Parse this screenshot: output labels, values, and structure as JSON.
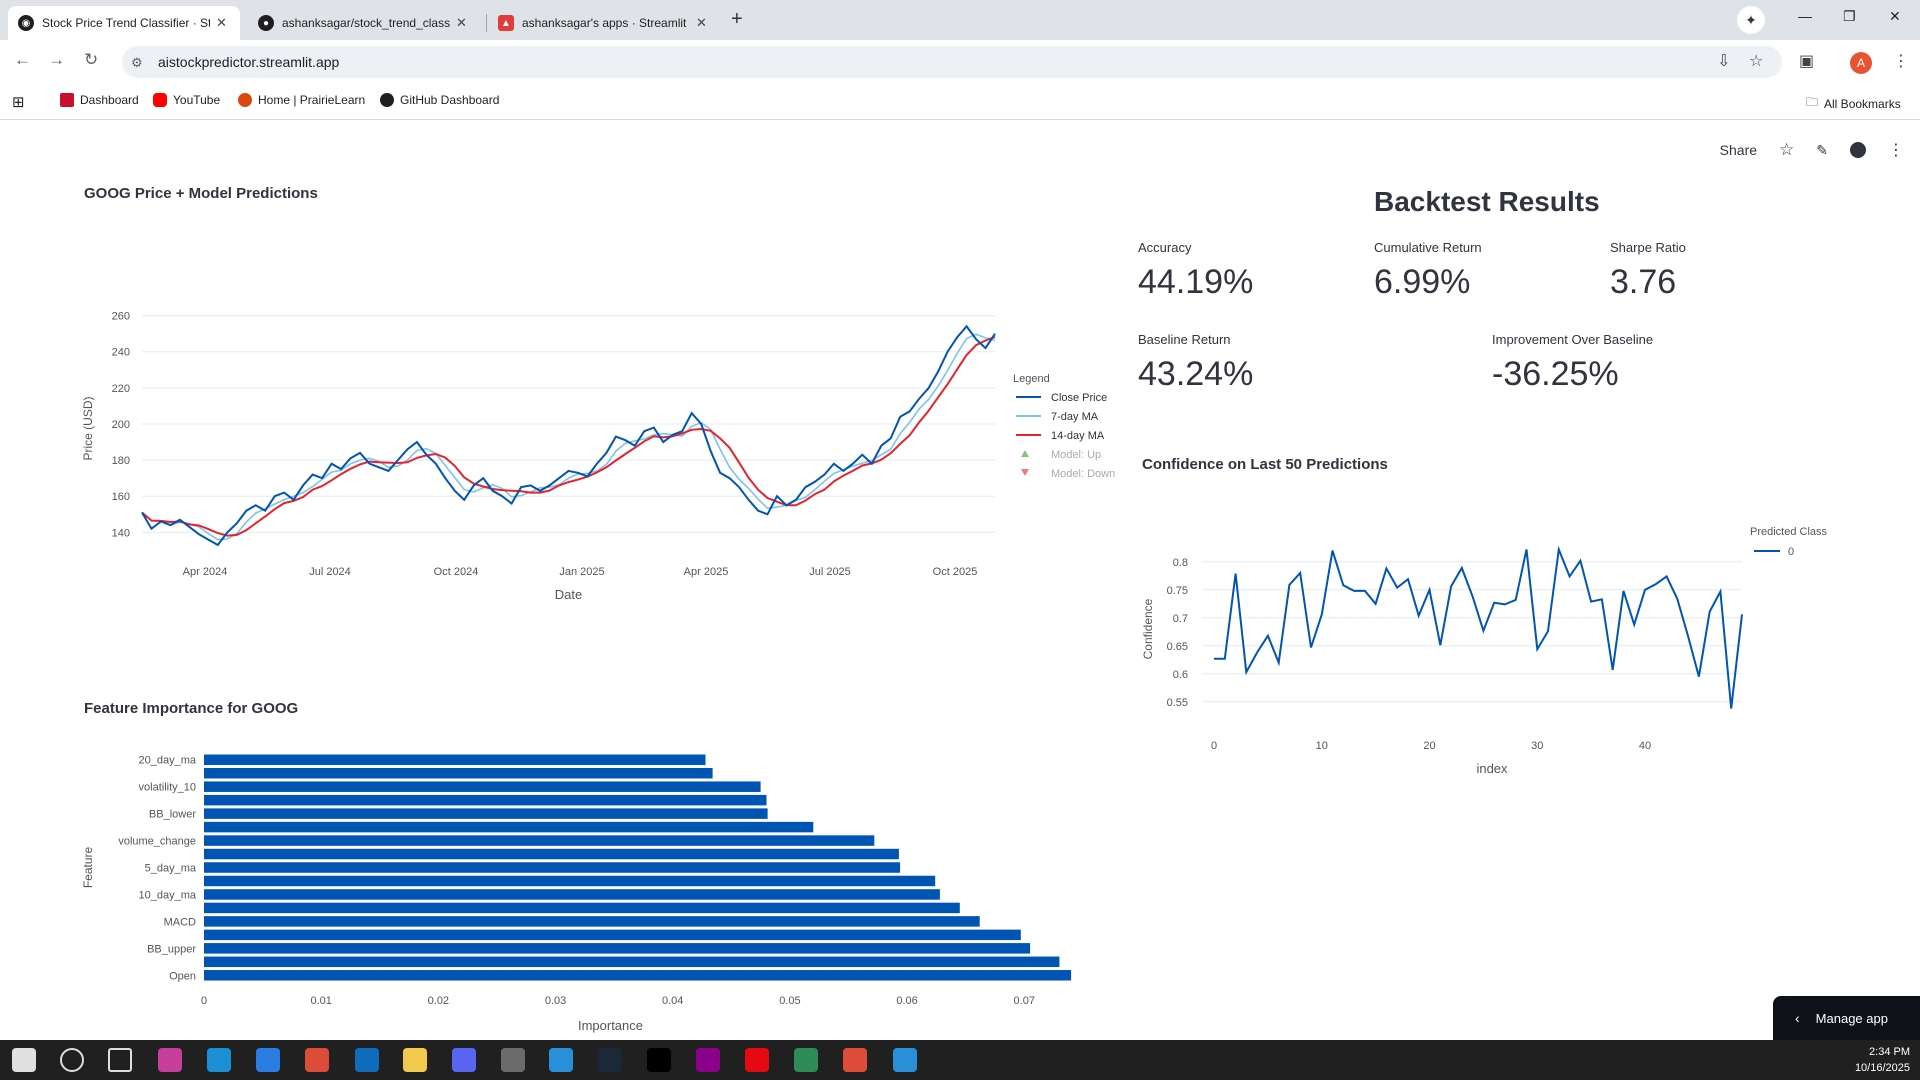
{
  "browser": {
    "tabs": [
      {
        "title": "Stock Price Trend Classifier · Str",
        "fav_color": "#1f1f1f"
      },
      {
        "title": "ashanksagar/stock_trend_classif",
        "fav_color": "#1f1f1f"
      },
      {
        "title": "ashanksagar's apps · Streamlit",
        "fav_color": "#e33b3b"
      }
    ],
    "url": "aistockpredictor.streamlit.app",
    "bookmarks": [
      {
        "label": "Dashboard",
        "color": "#c8102e"
      },
      {
        "label": "YouTube",
        "color": "#ff0000"
      },
      {
        "label": "Home | PrairieLearn",
        "color": "#d9480f"
      },
      {
        "label": "GitHub Dashboard",
        "color": "#1f1f1f"
      }
    ],
    "all_bookmarks": "All Bookmarks",
    "profile_initial": "A"
  },
  "header": {
    "share": "Share"
  },
  "price_chart": {
    "title": "GOOG Price + Model Predictions",
    "chart_data": {
      "type": "line",
      "xlabel": "Date",
      "ylabel": "Price (USD)",
      "x_ticks": [
        "Apr 2024",
        "Jul 2024",
        "Oct 2024",
        "Jan 2025",
        "Apr 2025",
        "Jul 2025",
        "Oct 2025"
      ],
      "y_ticks": [
        140,
        160,
        180,
        200,
        220,
        240,
        260
      ],
      "ylim": [
        133,
        262
      ],
      "legend_title": "Legend",
      "legend": [
        "Close Price",
        "7-day MA",
        "14-day MA",
        "Model: Up",
        "Model: Down"
      ],
      "colors": {
        "close": "#0055b3",
        "ma7": "#7ec3f0",
        "ma14": "#e8222b",
        "up": "#2ca02c",
        "down": "#d62728"
      },
      "series": [
        {
          "name": "Close Price",
          "x_range": [
            "2024-01-20",
            "2025-10-16"
          ],
          "values": [
            151,
            142,
            146,
            144,
            147,
            143,
            139,
            136,
            133,
            140,
            145,
            152,
            155,
            152,
            160,
            162,
            158,
            166,
            172,
            170,
            178,
            175,
            181,
            184,
            178,
            176,
            174,
            180,
            186,
            190,
            183,
            178,
            170,
            163,
            158,
            166,
            170,
            163,
            160,
            156,
            165,
            166,
            163,
            166,
            170,
            174,
            173,
            171,
            178,
            184,
            193,
            191,
            188,
            196,
            198,
            190,
            194,
            196,
            206,
            200,
            185,
            173,
            170,
            165,
            158,
            152,
            150,
            160,
            155,
            158,
            165,
            168,
            172,
            178,
            174,
            178,
            183,
            178,
            188,
            192,
            204,
            207,
            214,
            220,
            229,
            240,
            248,
            254,
            247,
            242,
            250
          ]
        }
      ],
      "predictions": "Model: Up / Model: Down markers listed in legend"
    }
  },
  "backtest": {
    "title": "Backtest Results",
    "metrics": [
      {
        "label": "Accuracy",
        "value": "44.19%"
      },
      {
        "label": "Cumulative Return",
        "value": "6.99%"
      },
      {
        "label": "Sharpe Ratio",
        "value": "3.76"
      },
      {
        "label": "Baseline Return",
        "value": "43.24%"
      },
      {
        "label": "Improvement Over Baseline",
        "value": "-36.25%"
      }
    ]
  },
  "confidence_chart": {
    "title": "Confidence on Last 50 Predictions",
    "chart_data": {
      "type": "line",
      "xlabel": "index",
      "ylabel": "Confidence",
      "x_ticks": [
        0,
        10,
        20,
        30,
        40
      ],
      "y_ticks": [
        0.55,
        0.6,
        0.65,
        0.7,
        0.75,
        0.8
      ],
      "ylim": [
        0.53,
        0.83
      ],
      "legend_title": "Predicted Class",
      "legend": [
        "0"
      ],
      "color": "#0055b3",
      "series": [
        {
          "name": "0",
          "values": [
            0.627,
            0.627,
            0.779,
            0.603,
            0.638,
            0.668,
            0.62,
            0.759,
            0.78,
            0.647,
            0.706,
            0.82,
            0.758,
            0.748,
            0.748,
            0.725,
            0.788,
            0.754,
            0.769,
            0.704,
            0.75,
            0.651,
            0.756,
            0.789,
            0.738,
            0.677,
            0.727,
            0.724,
            0.732,
            0.822,
            0.644,
            0.676,
            0.822,
            0.774,
            0.802,
            0.729,
            0.733,
            0.607,
            0.748,
            0.688,
            0.75,
            0.76,
            0.774,
            0.734,
            0.667,
            0.595,
            0.711,
            0.747,
            0.538,
            0.706
          ]
        }
      ]
    }
  },
  "feature_chart": {
    "title": "Feature Importance for GOOG",
    "chart_data": {
      "type": "bar",
      "orientation": "horizontal",
      "xlabel": "Importance",
      "ylabel": "Feature",
      "x_ticks": [
        0,
        0.01,
        0.02,
        0.03,
        0.04,
        0.05,
        0.06,
        0.07
      ],
      "xlim": [
        0,
        0.0745
      ],
      "color": "#0055b3",
      "labeled_rows": {
        "0": "20_day_ma",
        "2": "volatility_10",
        "4": "BB_lower",
        "6": "volume_change",
        "8": "5_day_ma",
        "10": "10_day_ma",
        "12": "MACD",
        "14": "BB_upper",
        "16": "Open"
      },
      "values": [
        0.0428,
        0.0434,
        0.0475,
        0.048,
        0.0481,
        0.052,
        0.0572,
        0.0593,
        0.0594,
        0.0624,
        0.0628,
        0.0645,
        0.0662,
        0.0697,
        0.0705,
        0.073,
        0.074
      ]
    }
  },
  "manage_app": "Manage app",
  "taskbar": {
    "time": "2:34 PM",
    "date": "10/16/2025",
    "icon_colors": [
      "#e0e0e0",
      "#3b3b3b",
      "#5a5a5a",
      "#c83e9b",
      "#1c8fd4",
      "#2a7de1",
      "#dd4b39",
      "#0f6cbd",
      "#f2c94c",
      "#5865f2",
      "#6b6b6b",
      "#2a8fd9",
      "#1b2838",
      "#000000",
      "#8b008b",
      "#e50914",
      "#2e8b57",
      "#dd4b39",
      "#2a8fd9"
    ]
  }
}
